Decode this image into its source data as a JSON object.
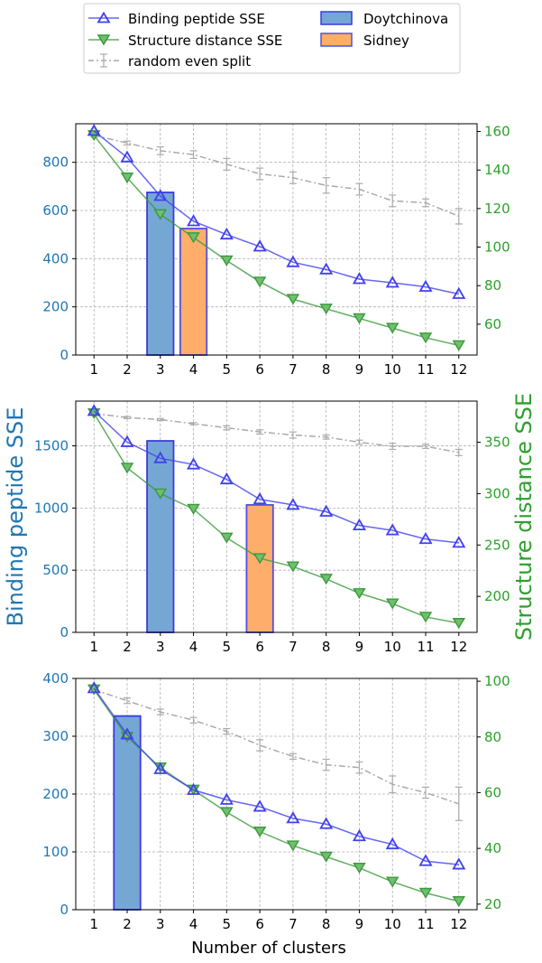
{
  "colors": {
    "binding": "#1f77b4",
    "binding_line": "#4040ee",
    "structure": "#2ca02c",
    "structure_line": "#3a9a3a",
    "random": "#aaaaaa",
    "doytchinova_fill": "#75a7d4",
    "doytchinova_edge": "#3a3ae0",
    "sidney_fill": "#ffad6b",
    "sidney_edge": "#5050e0",
    "grid": "#b0b0b0"
  },
  "legend": {
    "binding": "Binding peptide SSE",
    "structure": "Structure distance SSE",
    "random": "random even split",
    "doytchinova": "Doytchinova",
    "sidney": "Sidney"
  },
  "labels": {
    "xlabel": "Number of clusters",
    "ylabel_left": "Binding peptide SSE",
    "ylabel_right": "Structure distance SSE"
  },
  "chart_data": [
    {
      "type": "line",
      "x": [
        1,
        2,
        3,
        4,
        5,
        6,
        7,
        8,
        9,
        10,
        11,
        12
      ],
      "xticks": [
        "1",
        "2",
        "3",
        "4",
        "5",
        "6",
        "7",
        "8",
        "9",
        "10",
        "11",
        "12"
      ],
      "ylim_left": [
        0,
        960
      ],
      "yticks_left": [
        0,
        200,
        400,
        600,
        800
      ],
      "ylim_right": [
        44,
        164
      ],
      "yticks_right": [
        60,
        80,
        100,
        120,
        140,
        160
      ],
      "binding_sse": [
        930,
        820,
        660,
        555,
        500,
        450,
        385,
        355,
        315,
        300,
        283,
        253
      ],
      "structure_sse": [
        158,
        136,
        117,
        105,
        93,
        82,
        73,
        68,
        63,
        58,
        53,
        49
      ],
      "random_split": [
        158,
        154,
        150,
        148,
        143,
        138,
        136,
        132,
        130,
        124,
        123,
        116
      ],
      "random_err": [
        1,
        1,
        2,
        2,
        3,
        3,
        3,
        4,
        3,
        3,
        2,
        4
      ],
      "bars": [
        {
          "name": "Doytchinova",
          "x": 3,
          "value": 675
        },
        {
          "name": "Sidney",
          "x": 4,
          "value": 525
        }
      ],
      "grid": true
    },
    {
      "type": "line",
      "x": [
        1,
        2,
        3,
        4,
        5,
        6,
        7,
        8,
        9,
        10,
        11,
        12
      ],
      "xticks": [
        "1",
        "2",
        "3",
        "4",
        "5",
        "6",
        "7",
        "8",
        "9",
        "10",
        "11",
        "12"
      ],
      "ylim_left": [
        0,
        1860
      ],
      "yticks_left": [
        0,
        500,
        1000,
        1500
      ],
      "ylim_right": [
        165,
        390
      ],
      "yticks_right": [
        200,
        250,
        300,
        350
      ],
      "binding_sse": [
        1780,
        1530,
        1400,
        1350,
        1230,
        1070,
        1025,
        970,
        860,
        820,
        750,
        720
      ],
      "structure_sse": [
        378,
        325,
        300,
        285,
        257,
        237,
        229,
        217,
        203,
        193,
        180,
        174
      ],
      "random_split": [
        378,
        374,
        372,
        368,
        364,
        360,
        357,
        355,
        350,
        346,
        346,
        340
      ],
      "random_err": [
        1,
        1,
        1,
        1,
        2,
        2,
        3,
        2,
        2,
        3,
        2,
        3
      ],
      "bars": [
        {
          "name": "Doytchinova",
          "x": 3,
          "value": 1540
        },
        {
          "name": "Sidney",
          "x": 6,
          "value": 1025
        }
      ],
      "grid": true
    },
    {
      "type": "line",
      "x": [
        1,
        2,
        3,
        4,
        5,
        6,
        7,
        8,
        9,
        10,
        11,
        12
      ],
      "xticks": [
        "1",
        "2",
        "3",
        "4",
        "5",
        "6",
        "7",
        "8",
        "9",
        "10",
        "11",
        "12"
      ],
      "ylim_left": [
        0,
        400
      ],
      "yticks_left": [
        0,
        100,
        200,
        300,
        400
      ],
      "ylim_right": [
        18,
        101
      ],
      "yticks_right": [
        20,
        40,
        60,
        80,
        100
      ],
      "binding_sse": [
        383,
        303,
        243,
        207,
        190,
        178,
        158,
        148,
        127,
        113,
        84,
        78
      ],
      "structure_sse": [
        97,
        80,
        69,
        61,
        53,
        46,
        41,
        37,
        33,
        28,
        24,
        21
      ],
      "random_split": [
        97,
        93,
        89,
        86,
        82,
        77,
        73,
        70,
        69,
        63,
        60,
        56
      ],
      "random_err": [
        1,
        1,
        1,
        1,
        1,
        2,
        1,
        2,
        2,
        3,
        2,
        6
      ],
      "bars": [
        {
          "name": "Doytchinova",
          "x": 2,
          "value": 335
        }
      ],
      "grid": true
    }
  ]
}
